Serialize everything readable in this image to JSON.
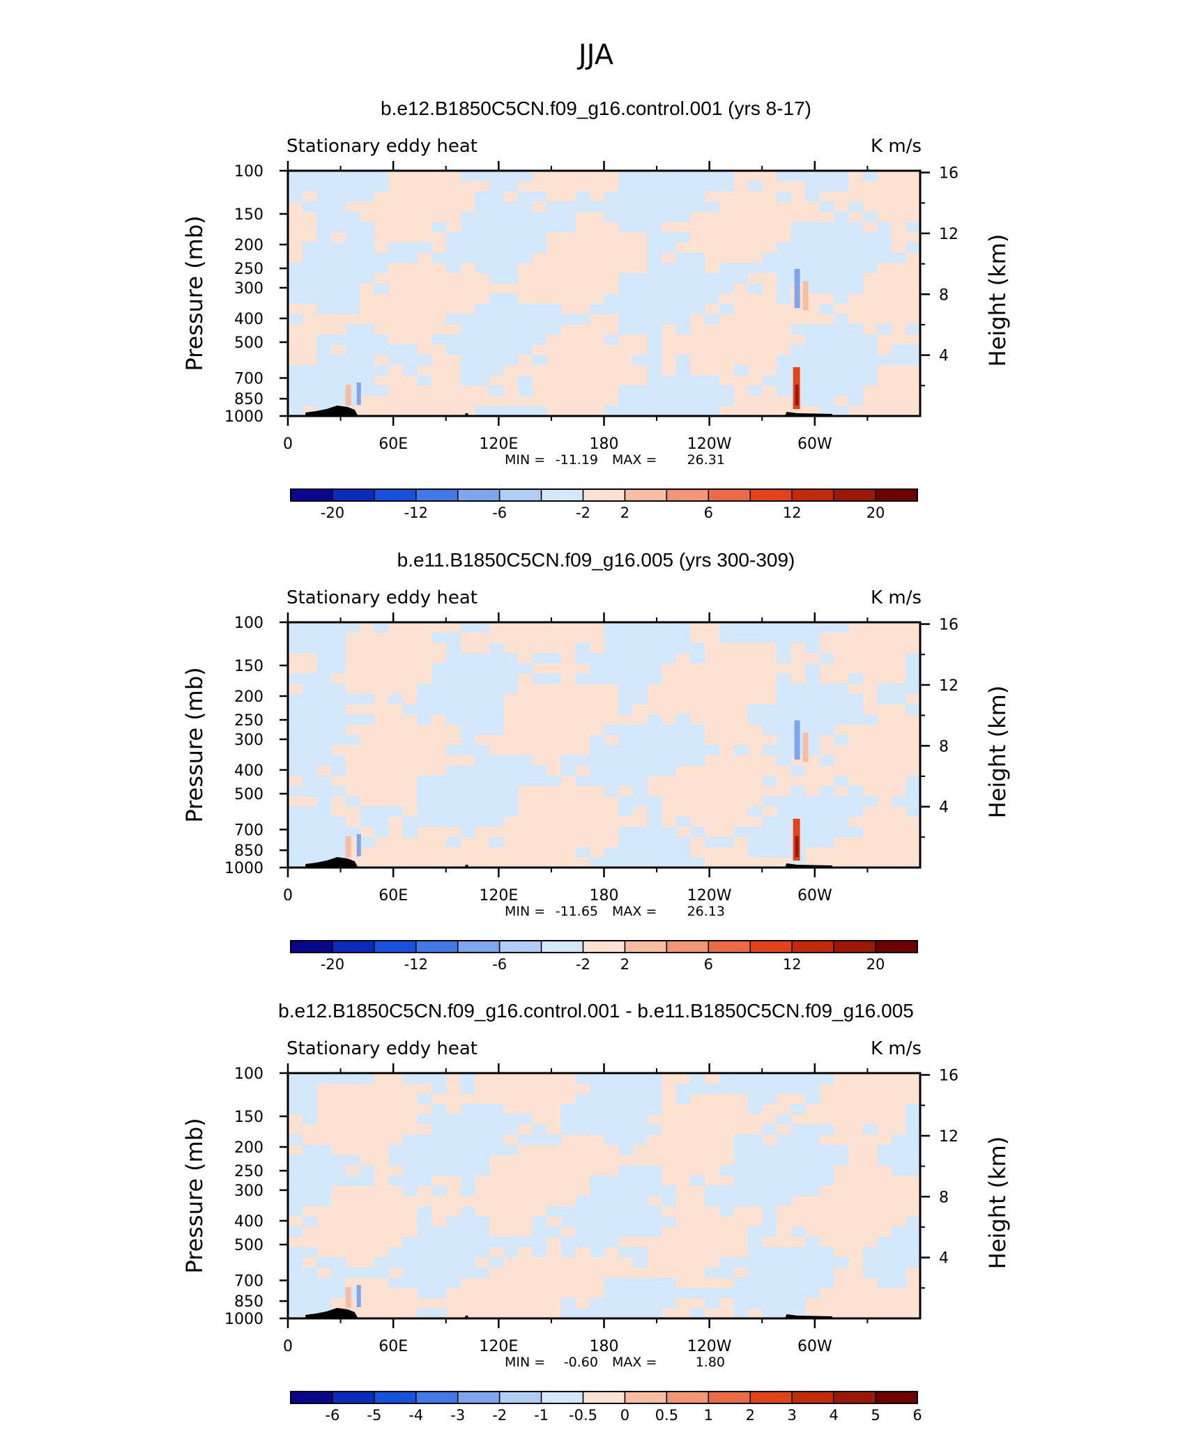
{
  "page_title": "JJA",
  "colors": {
    "contour_light_blue": "#d3e8fb",
    "contour_light_orange": "#fde2d2",
    "orography": "#000000",
    "frame": "#000000"
  },
  "chart_data": [
    {
      "type": "heatmap",
      "title": "b.e12.B1850C5CN.f09_g16.control.001 (yrs 8-17)",
      "left_string": "Stationary eddy heat",
      "right_string": "K m/s",
      "ylabel": "Pressure (mb)",
      "y2label": "Height (km)",
      "x_ticks": [
        "0",
        "60E",
        "120E",
        "180",
        "120W",
        "60W"
      ],
      "x_range_deg_east": [
        0,
        360
      ],
      "y_ticks_mb": [
        "100",
        "150",
        "200",
        "250",
        "300",
        "400",
        "500",
        "700",
        "850",
        "1000"
      ],
      "y_range_mb": [
        100,
        1000
      ],
      "y2_ticks_km": [
        "16",
        "12",
        "8",
        "4"
      ],
      "stats": {
        "min_label": "MIN =",
        "min": "-11.19",
        "max_label": "MAX =",
        "max": "26.31"
      },
      "colorbar": {
        "labels": [
          "-20",
          "-12",
          "-6",
          "-2",
          "2",
          "6",
          "12",
          "20"
        ],
        "colors": [
          "#08088c",
          "#0a2cbe",
          "#1652e0",
          "#3f7ae8",
          "#7da6ee",
          "#b0cdf5",
          "#d3e8fb",
          "#fde2d2",
          "#f8bca0",
          "#f29676",
          "#ec6a44",
          "#e34316",
          "#c32a08",
          "#9e1806",
          "#6e0000"
        ]
      }
    },
    {
      "type": "heatmap",
      "title": "b.e11.B1850C5CN.f09_g16.005 (yrs 300-309)",
      "left_string": "Stationary eddy heat",
      "right_string": "K m/s",
      "ylabel": "Pressure (mb)",
      "y2label": "Height (km)",
      "x_ticks": [
        "0",
        "60E",
        "120E",
        "180",
        "120W",
        "60W"
      ],
      "x_range_deg_east": [
        0,
        360
      ],
      "y_ticks_mb": [
        "100",
        "150",
        "200",
        "250",
        "300",
        "400",
        "500",
        "700",
        "850",
        "1000"
      ],
      "y_range_mb": [
        100,
        1000
      ],
      "y2_ticks_km": [
        "16",
        "12",
        "8",
        "4"
      ],
      "stats": {
        "min_label": "MIN =",
        "min": "-11.65",
        "max_label": "MAX =",
        "max": "26.13"
      },
      "colorbar": {
        "labels": [
          "-20",
          "-12",
          "-6",
          "-2",
          "2",
          "6",
          "12",
          "20"
        ],
        "colors": [
          "#08088c",
          "#0a2cbe",
          "#1652e0",
          "#3f7ae8",
          "#7da6ee",
          "#b0cdf5",
          "#d3e8fb",
          "#fde2d2",
          "#f8bca0",
          "#f29676",
          "#ec6a44",
          "#e34316",
          "#c32a08",
          "#9e1806",
          "#6e0000"
        ]
      }
    },
    {
      "type": "heatmap",
      "title": "b.e12.B1850C5CN.f09_g16.control.001 - b.e11.B1850C5CN.f09_g16.005",
      "left_string": "Stationary eddy heat",
      "right_string": "K m/s",
      "ylabel": "Pressure (mb)",
      "y2label": "Height (km)",
      "x_ticks": [
        "0",
        "60E",
        "120E",
        "180",
        "120W",
        "60W"
      ],
      "x_range_deg_east": [
        0,
        360
      ],
      "y_ticks_mb": [
        "100",
        "150",
        "200",
        "250",
        "300",
        "400",
        "500",
        "700",
        "850",
        "1000"
      ],
      "y_range_mb": [
        100,
        1000
      ],
      "y2_ticks_km": [
        "16",
        "12",
        "8",
        "4"
      ],
      "stats": {
        "min_label": "MIN =",
        "min": "-0.60",
        "max_label": "MAX =",
        "max": "1.80"
      },
      "colorbar": {
        "labels": [
          "-6",
          "-5",
          "-4",
          "-3",
          "-2",
          "-1",
          "-0.5",
          "0",
          "0.5",
          "1",
          "2",
          "3",
          "4",
          "5",
          "6"
        ],
        "colors": [
          "#08088c",
          "#0a2cbe",
          "#1652e0",
          "#3f7ae8",
          "#7da6ee",
          "#b0cdf5",
          "#d3e8fb",
          "#fde2d2",
          "#f8bca0",
          "#f29676",
          "#ec6a44",
          "#e34316",
          "#c32a08",
          "#9e1806",
          "#6e0000"
        ]
      }
    }
  ]
}
